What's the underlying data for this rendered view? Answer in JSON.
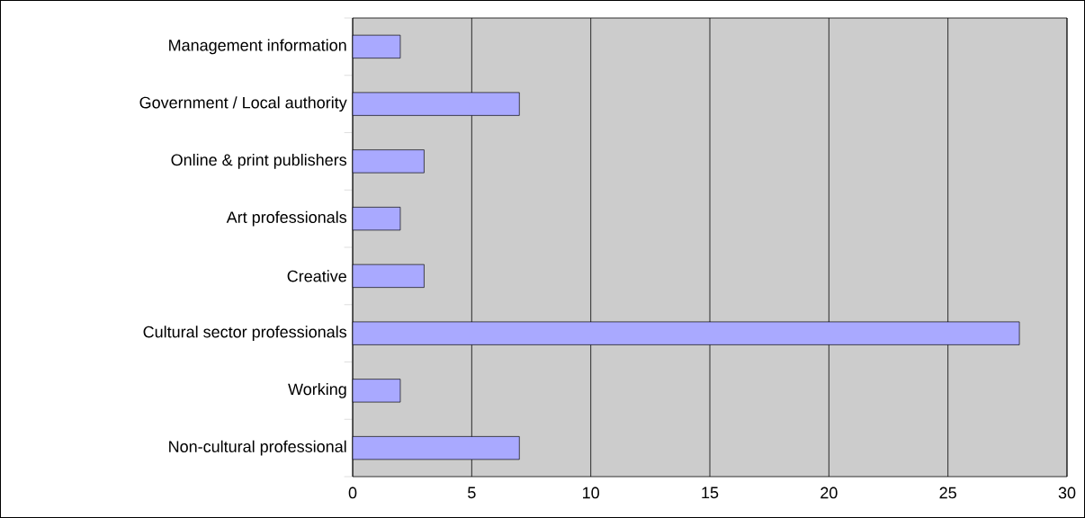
{
  "chart_data": {
    "type": "bar",
    "orientation": "horizontal",
    "categories": [
      "Management information",
      "Government / Local authority",
      "Online & print publishers",
      "Art professionals",
      "Creative",
      "Cultural sector professionals",
      "Working",
      "Non-cultural professional"
    ],
    "values": [
      2,
      7,
      3,
      2,
      3,
      28,
      2,
      7
    ],
    "color": "#a9a9ff",
    "xlim": [
      0,
      30
    ],
    "xticks": [
      0,
      5,
      10,
      15,
      20,
      25,
      30
    ],
    "grid": "x"
  }
}
